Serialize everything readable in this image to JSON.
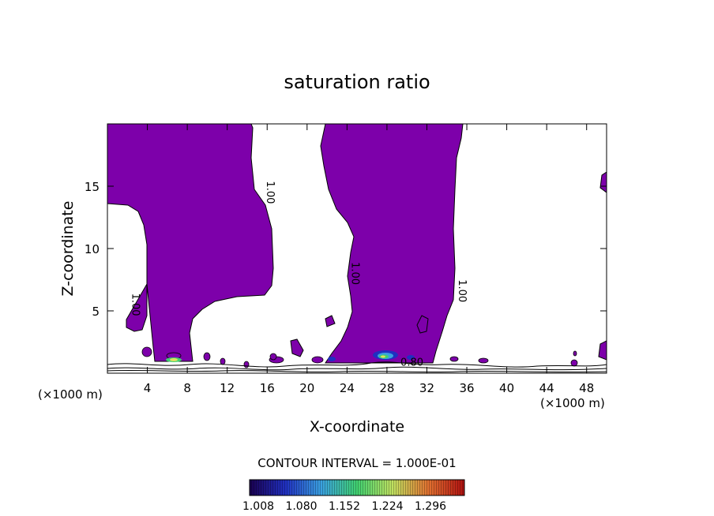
{
  "chart_data": {
    "type": "contour",
    "title": "saturation ratio",
    "xlabel": "X-coordinate",
    "ylabel": "Z-coordinate",
    "x_unit_note": "(×1000 m)",
    "x_unit_note_right": "(×1000 m)",
    "xlim": [
      0,
      50
    ],
    "ylim": [
      0,
      20
    ],
    "x_ticks": [
      4,
      8,
      12,
      16,
      20,
      24,
      28,
      32,
      36,
      40,
      44,
      48
    ],
    "y_ticks": [
      5,
      10,
      15
    ],
    "contour_interval_label": "CONTOUR INTERVAL = 1.000E-01",
    "contour_labels": [
      {
        "text": "1.00",
        "x": 16.0,
        "z": 14.5
      },
      {
        "text": "1.00",
        "x": 2.5,
        "z": 5.5
      },
      {
        "text": "1.00",
        "x": 24.5,
        "z": 8.0
      },
      {
        "text": "1.00",
        "x": 35.2,
        "z": 6.6
      },
      {
        "text": "0.80",
        "x": 30.5,
        "z": 0.6
      }
    ],
    "fill_color": "#7d00aa",
    "colorbar": {
      "tick_labels": [
        "1.008",
        "1.080",
        "1.152",
        "1.224",
        "1.296"
      ],
      "stops": [
        "#1a0050",
        "#2030c0",
        "#3aa0e0",
        "#40d070",
        "#c0e060",
        "#e07030",
        "#b01010"
      ]
    }
  }
}
